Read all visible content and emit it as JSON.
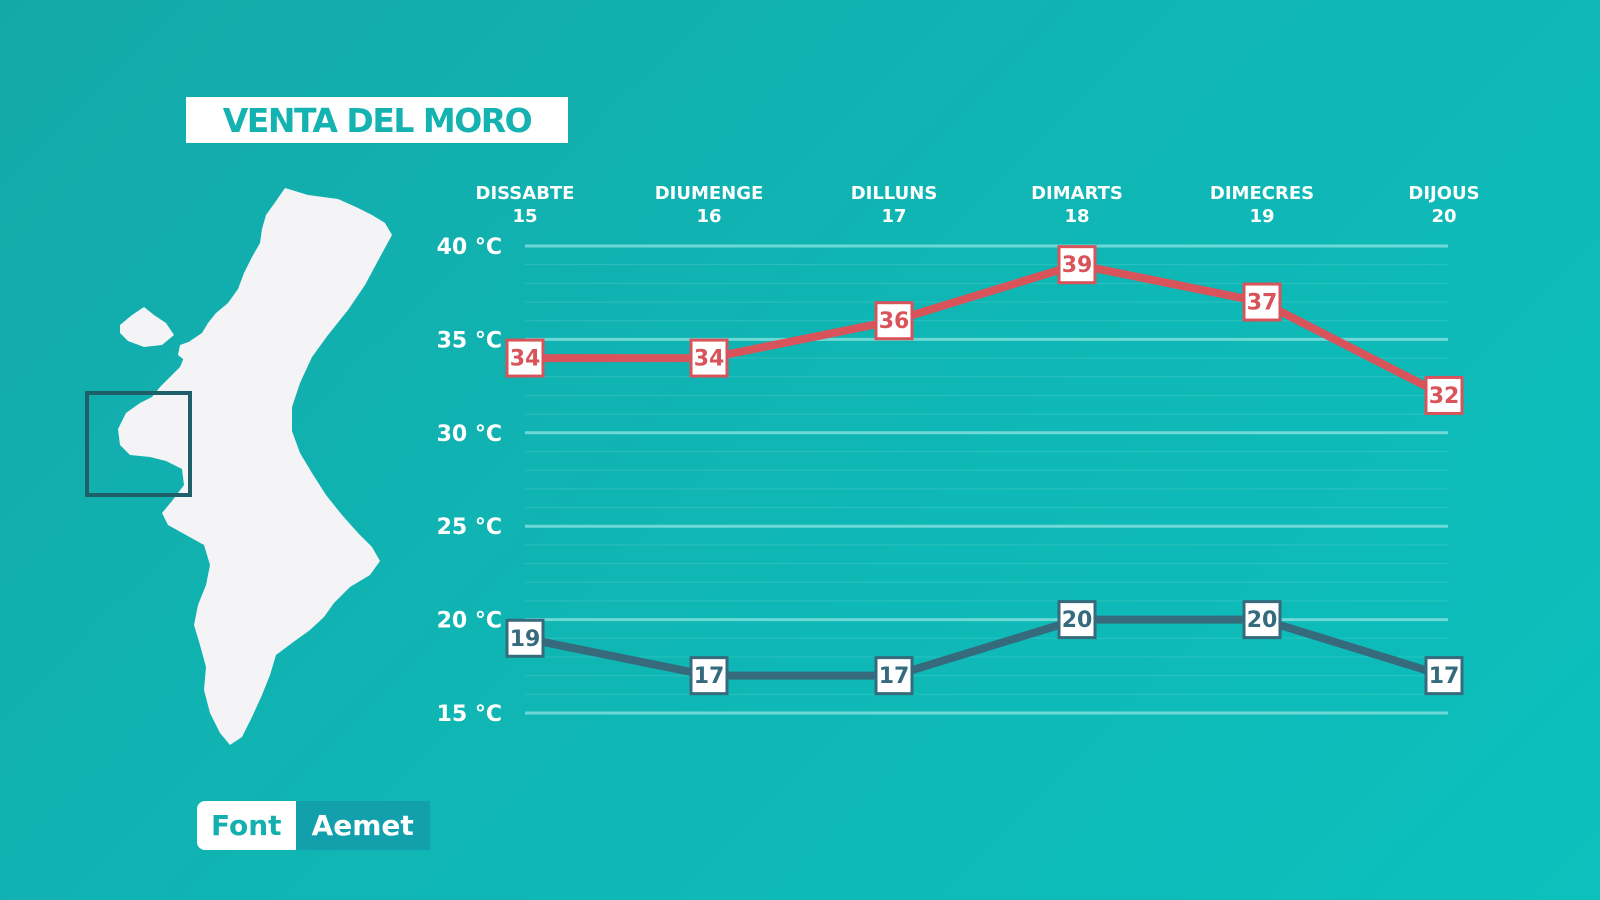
{
  "title": "VENTA DEL MORO",
  "source": {
    "label": "Font",
    "value": "Aemet"
  },
  "colors": {
    "max": "#d9535a",
    "min": "#356b7c",
    "background": "#10b2b0",
    "grid": "#7fdedc"
  },
  "chart_data": {
    "type": "line",
    "categories": [
      {
        "day": "DISSABTE",
        "date": "15"
      },
      {
        "day": "DIUMENGE",
        "date": "16"
      },
      {
        "day": "DILLUNS",
        "date": "17"
      },
      {
        "day": "DIMARTS",
        "date": "18"
      },
      {
        "day": "DIMECRES",
        "date": "19"
      },
      {
        "day": "DIJOUS",
        "date": "20"
      }
    ],
    "series": [
      {
        "key": "max",
        "values": [
          34,
          34,
          36,
          39,
          37,
          32
        ]
      },
      {
        "key": "min",
        "values": [
          19,
          17,
          17,
          20,
          20,
          17
        ]
      }
    ],
    "y_ticks": [
      {
        "value": 40,
        "label": "40 °C"
      },
      {
        "value": 35,
        "label": "35 °C"
      },
      {
        "value": 30,
        "label": "30 °C"
      },
      {
        "value": 25,
        "label": "25 °C"
      },
      {
        "value": 20,
        "label": "20 °C"
      },
      {
        "value": 15,
        "label": "15 °C"
      }
    ],
    "ylim": [
      15,
      40
    ],
    "grid": true
  }
}
